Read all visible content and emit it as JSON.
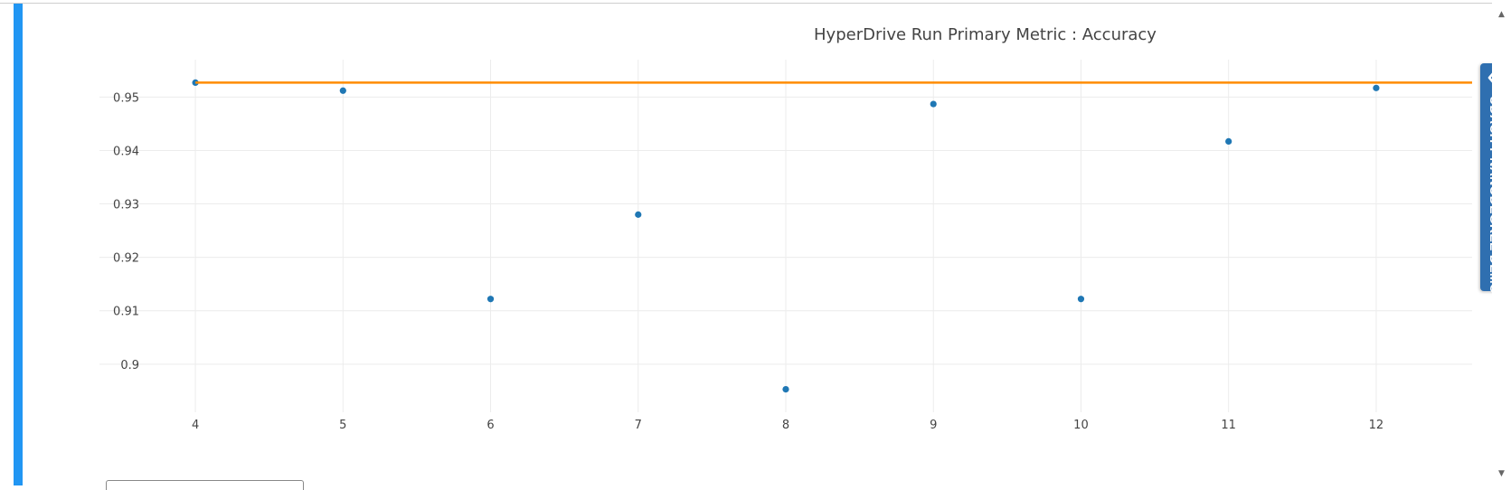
{
  "chart_data": {
    "type": "scatter",
    "title": "HyperDrive Run Primary Metric : Accuracy",
    "xlabel": "",
    "ylabel": "",
    "x_ticks": [
      "4",
      "5",
      "6",
      "7",
      "8",
      "9",
      "10",
      "11",
      "12"
    ],
    "y_ticks": [
      "0.9",
      "0.91",
      "0.92",
      "0.93",
      "0.94",
      "0.95"
    ],
    "xlim": [
      3.35,
      12.65
    ],
    "ylim": [
      0.891,
      0.957
    ],
    "grid": true,
    "series": [
      {
        "type": "scatter",
        "color": "#1f77b4",
        "points": [
          {
            "x": 4,
            "y": 0.9527
          },
          {
            "x": 5,
            "y": 0.9512
          },
          {
            "x": 6,
            "y": 0.9122
          },
          {
            "x": 7,
            "y": 0.928
          },
          {
            "x": 8,
            "y": 0.8953
          },
          {
            "x": 9,
            "y": 0.9487
          },
          {
            "x": 10,
            "y": 0.9122
          },
          {
            "x": 11,
            "y": 0.9417
          },
          {
            "x": 12,
            "y": 0.9517
          }
        ]
      },
      {
        "type": "line",
        "color": "#ff8c00",
        "points": [
          {
            "x": 4,
            "y": 0.9527
          },
          {
            "x": 12.65,
            "y": 0.9527
          }
        ]
      }
    ]
  },
  "side_tab": {
    "label": "UDACITY NANODEGREE DEMO",
    "icon": "double-chevron-left-icon",
    "color": "#2f6fb0"
  },
  "scrollbar": {
    "up_glyph": "▲",
    "down_glyph": "▼"
  },
  "colors": {
    "accent_bar": "#2196f3"
  }
}
